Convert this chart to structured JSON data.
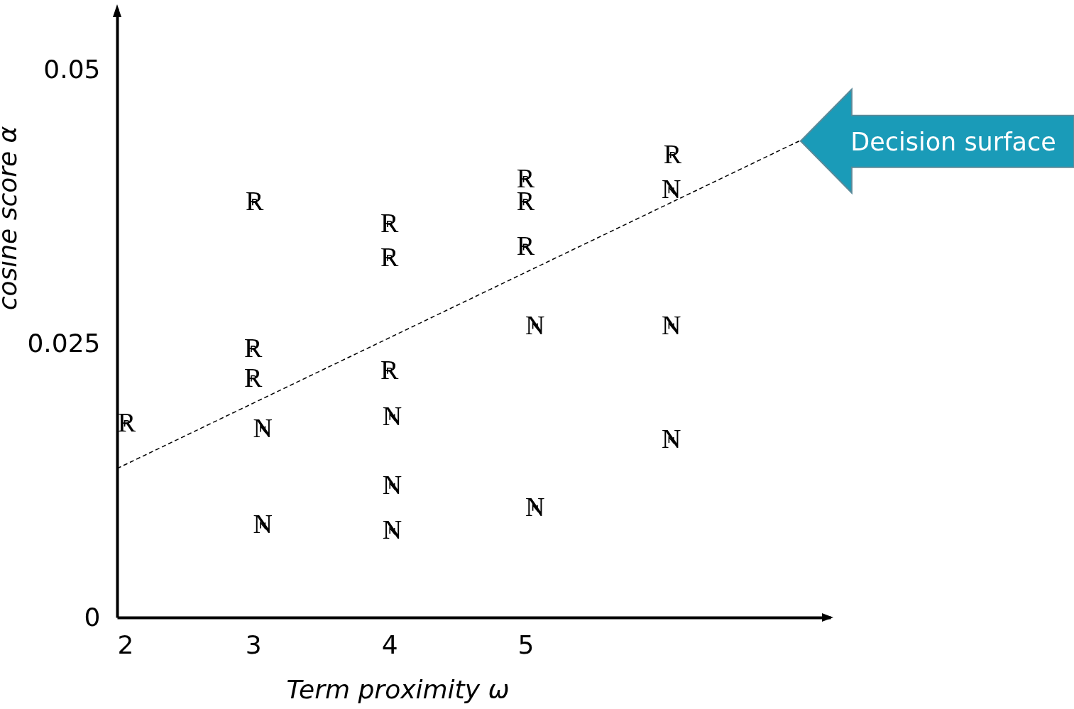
{
  "chart_data": {
    "type": "scatter",
    "xlabel": "Term proximity ω",
    "ylabel": "cosine score α",
    "xlim": [
      2,
      7.24
    ],
    "ylim": [
      0,
      0.0556
    ],
    "xticks": [
      2,
      3,
      4,
      5
    ],
    "yticks": [
      0,
      0.025,
      0.05
    ],
    "grid": false,
    "series": [
      {
        "name": "R",
        "type": "scatter",
        "color": "#000000",
        "x": [
          2.07,
          3.01,
          3.0,
          3.0,
          4.0,
          4.0,
          4.0,
          5.0,
          5.0,
          5.0,
          6.08
        ],
        "values": [
          0.0177,
          0.0379,
          0.0245,
          0.0218,
          0.0359,
          0.0328,
          0.0225,
          0.04,
          0.0379,
          0.0338,
          0.0422
        ]
      },
      {
        "name": "N",
        "type": "scatter",
        "color": "#000000",
        "x": [
          3.07,
          3.07,
          4.02,
          4.02,
          4.02,
          5.07,
          5.07,
          6.07,
          6.07,
          6.07
        ],
        "values": [
          0.0172,
          0.0084,
          0.0183,
          0.012,
          0.0079,
          0.0266,
          0.01,
          0.039,
          0.0266,
          0.0162
        ]
      },
      {
        "type": "line",
        "color": "#000000",
        "line_style": "dashed",
        "x": [
          2,
          7.01
        ],
        "values": [
          0.0136,
          0.0435
        ]
      }
    ],
    "annotations": [
      {
        "text": "Decision surface",
        "x": 7.01,
        "y": 0.0435
      }
    ]
  }
}
